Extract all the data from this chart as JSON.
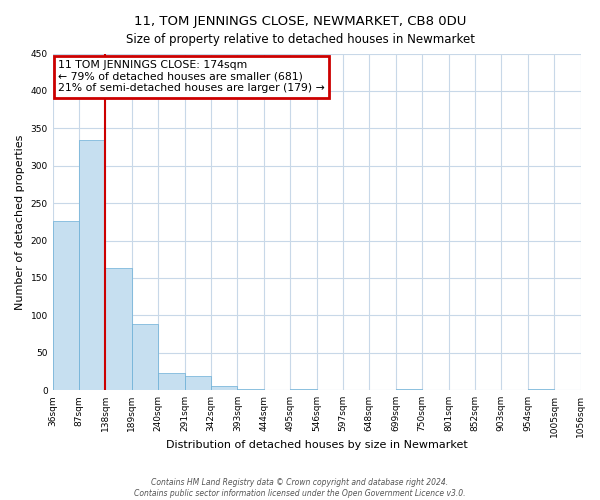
{
  "title": "11, TOM JENNINGS CLOSE, NEWMARKET, CB8 0DU",
  "subtitle": "Size of property relative to detached houses in Newmarket",
  "xlabel": "Distribution of detached houses by size in Newmarket",
  "ylabel": "Number of detached properties",
  "bar_values": [
    226,
    335,
    163,
    89,
    23,
    19,
    6,
    1,
    0,
    2,
    0,
    0,
    0,
    2,
    0,
    0,
    0,
    0,
    1,
    0
  ],
  "bin_labels": [
    "36sqm",
    "87sqm",
    "138sqm",
    "189sqm",
    "240sqm",
    "291sqm",
    "342sqm",
    "393sqm",
    "444sqm",
    "495sqm",
    "546sqm",
    "597sqm",
    "648sqm",
    "699sqm",
    "750sqm",
    "801sqm",
    "852sqm",
    "903sqm",
    "954sqm",
    "1005sqm",
    "1056sqm"
  ],
  "bar_color": "#c6dff0",
  "bar_edge_color": "#6aaed6",
  "property_line_x": 2,
  "property_line_label": "11 TOM JENNINGS CLOSE: 174sqm",
  "annotation_line1": "← 79% of detached houses are smaller (681)",
  "annotation_line2": "21% of semi-detached houses are larger (179) →",
  "annotation_box_color": "#ffffff",
  "annotation_box_edge": "#cc0000",
  "vline_color": "#cc0000",
  "ylim": [
    0,
    450
  ],
  "yticks": [
    0,
    50,
    100,
    150,
    200,
    250,
    300,
    350,
    400,
    450
  ],
  "footnote1": "Contains HM Land Registry data © Crown copyright and database right 2024.",
  "footnote2": "Contains public sector information licensed under the Open Government Licence v3.0.",
  "n_bins": 20
}
